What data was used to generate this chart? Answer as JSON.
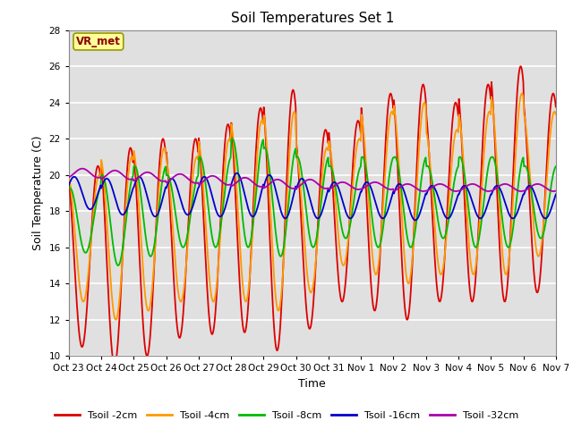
{
  "title": "Soil Temperatures Set 1",
  "xlabel": "Time",
  "ylabel": "Soil Temperature (C)",
  "ylim": [
    10,
    28
  ],
  "yticks": [
    10,
    12,
    14,
    16,
    18,
    20,
    22,
    24,
    26,
    28
  ],
  "fig_bg_color": "#ffffff",
  "plot_bg_color": "#e0e0e0",
  "grid_color": "#ffffff",
  "colors": {
    "Tsoil -2cm": "#dd0000",
    "Tsoil -4cm": "#ff9900",
    "Tsoil -8cm": "#00bb00",
    "Tsoil -16cm": "#0000cc",
    "Tsoil -32cm": "#aa00aa"
  },
  "xtick_labels": [
    "Oct 23",
    "Oct 24",
    "Oct 25",
    "Oct 26",
    "Oct 27",
    "Oct 28",
    "Oct 29",
    "Oct 30",
    "Oct 31",
    "Nov 1",
    "Nov 2",
    "Nov 3",
    "Nov 4",
    "Nov 5",
    "Nov 6",
    "Nov 7"
  ],
  "annotation_text": "VR_met",
  "n_days": 15,
  "pts_per_day": 48
}
